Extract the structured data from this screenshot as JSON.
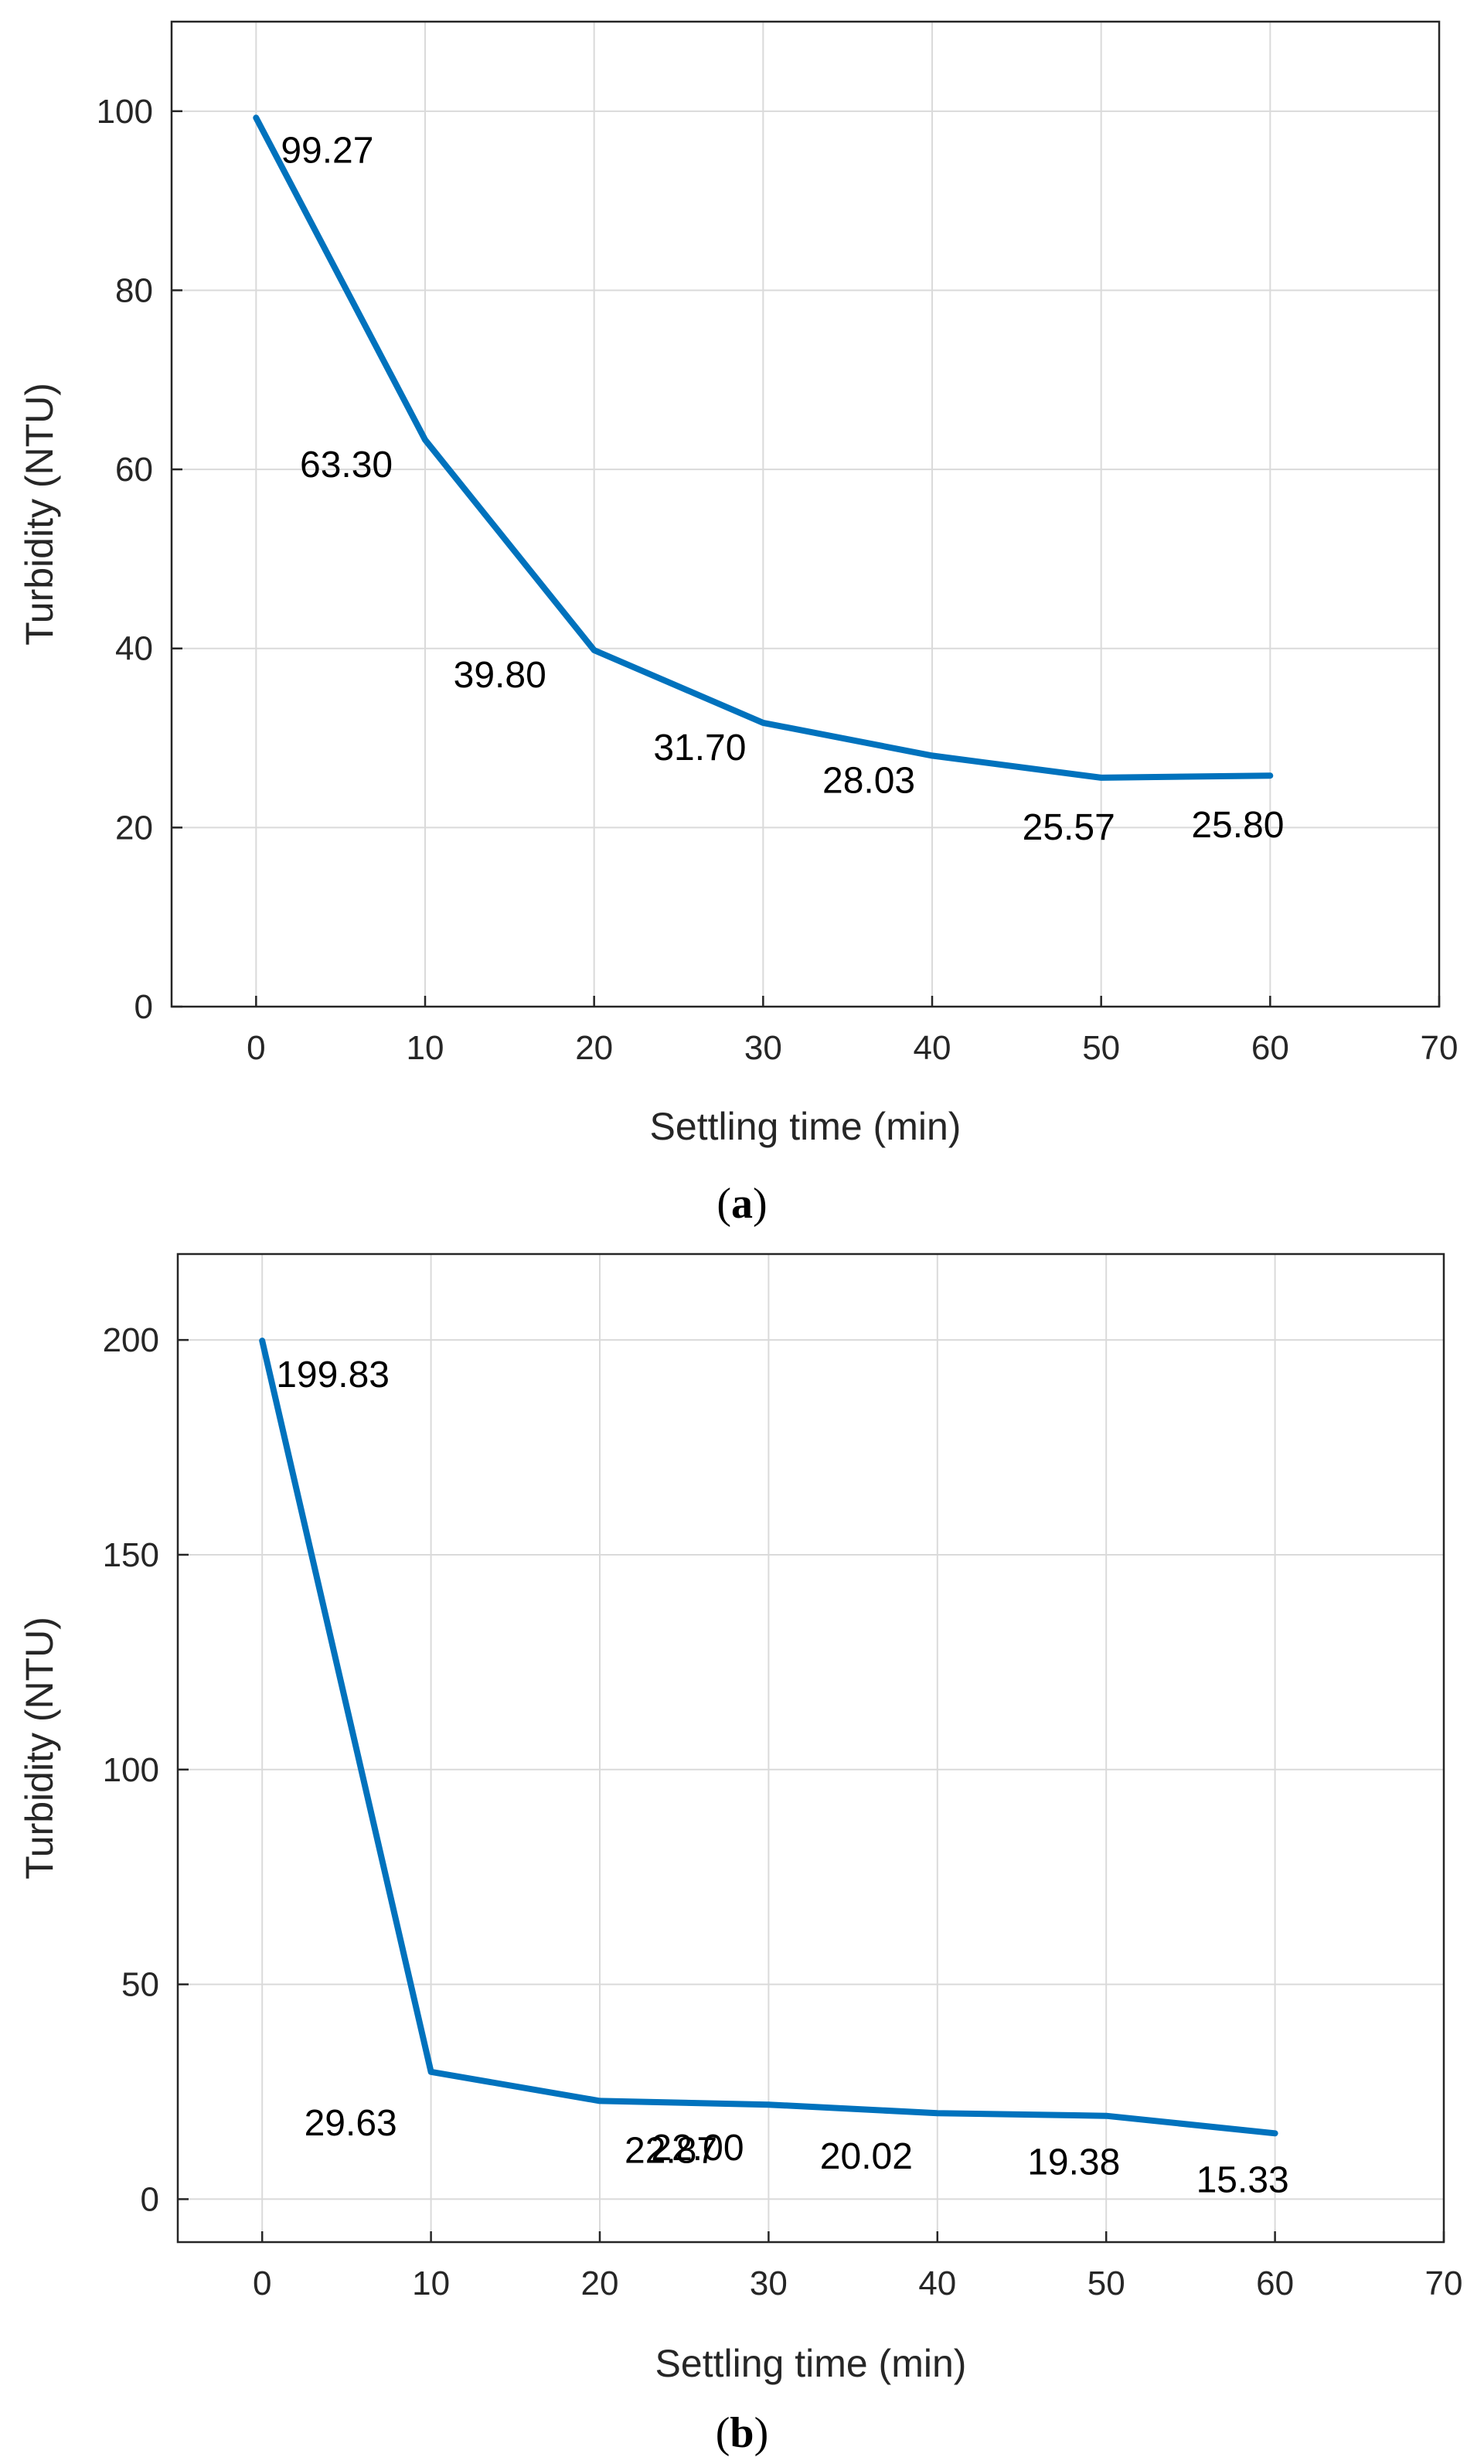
{
  "colors": {
    "series": "#0072BD",
    "grid": "#dadada",
    "axis": "#262626"
  },
  "chart_data": [
    {
      "type": "line",
      "panel": "a",
      "caption": "(a)",
      "xlabel": "Settling time (min)",
      "ylabel": "Turbidity (NTU)",
      "xlim": [
        -5,
        70
      ],
      "ylim": [
        0,
        110
      ],
      "xticks": [
        0,
        10,
        20,
        30,
        40,
        50,
        60,
        70
      ],
      "yticks": [
        0,
        20,
        40,
        60,
        80,
        100
      ],
      "grid": true,
      "x": [
        0,
        10,
        20,
        30,
        40,
        50,
        60
      ],
      "values": [
        99.27,
        63.3,
        39.8,
        31.7,
        28.03,
        25.57,
        25.8
      ],
      "labels": [
        "99.27",
        "63.30",
        "39.80",
        "31.70",
        "28.03",
        "25.57",
        "25.80"
      ]
    },
    {
      "type": "line",
      "panel": "b",
      "caption": "(b)",
      "xlabel": "Settling time (min)",
      "ylabel": "Turbidity (NTU)",
      "xlim": [
        -5,
        70
      ],
      "ylim": [
        -10,
        220
      ],
      "xticks": [
        0,
        10,
        20,
        30,
        40,
        50,
        60,
        70
      ],
      "yticks": [
        0,
        50,
        100,
        150,
        200
      ],
      "grid": true,
      "x": [
        0,
        10,
        20,
        30,
        40,
        50,
        60
      ],
      "values": [
        199.83,
        29.63,
        22.87,
        22.0,
        20.02,
        19.38,
        15.33
      ],
      "labels": [
        "199.83",
        "29.63",
        "22.87",
        "22.00",
        "20.02",
        "19.38",
        "15.33"
      ]
    }
  ]
}
